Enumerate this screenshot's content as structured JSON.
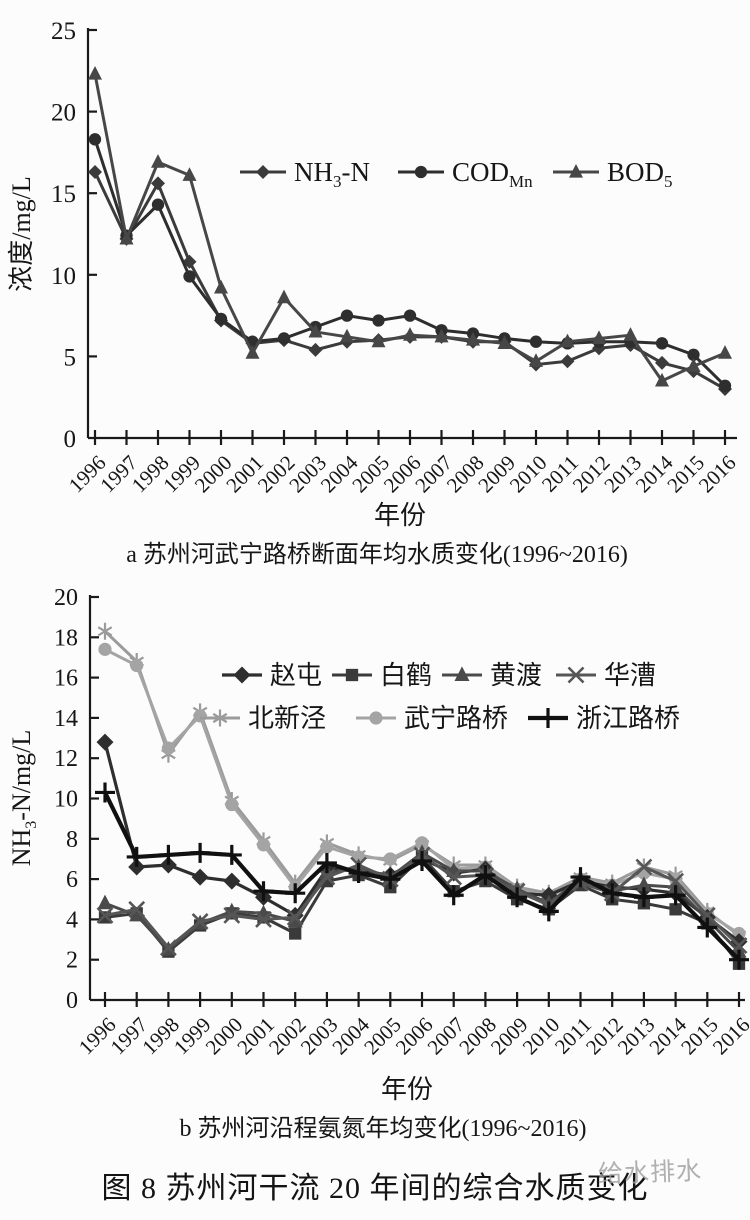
{
  "figure": {
    "title": "图 8  苏州河干流 20 年间的综合水质变化",
    "watermark": "给水排水"
  },
  "chart_data": [
    {
      "id": "a",
      "type": "line",
      "title": "a 苏州河武宁路桥断面年均水质变化(1996~2016)",
      "xlabel": "年份",
      "ylabel": "浓度/mg/L",
      "ylim": [
        0,
        25
      ],
      "ytick_step": 5,
      "grid": false,
      "legend_position": "inside-top-center",
      "categories": [
        1996,
        1997,
        1998,
        1999,
        2000,
        2001,
        2002,
        2003,
        2004,
        2005,
        2006,
        2007,
        2008,
        2009,
        2010,
        2011,
        2012,
        2013,
        2014,
        2015,
        2016
      ],
      "series": [
        {
          "name": "NH3-N",
          "legend": {
            "text": "NH",
            "sub": "3",
            "tail": "-N"
          },
          "marker": "diamond",
          "color": "#3b3b3b",
          "values": [
            16.3,
            12.2,
            15.6,
            10.8,
            7.2,
            5.8,
            6.0,
            5.4,
            5.9,
            6.0,
            6.2,
            6.2,
            5.9,
            5.9,
            4.5,
            4.7,
            5.5,
            5.7,
            4.6,
            4.1,
            3.0
          ]
        },
        {
          "name": "CODMn",
          "legend": {
            "text": "COD",
            "sub": "Mn",
            "tail": ""
          },
          "marker": "circle",
          "color": "#2e2e2e",
          "values": [
            18.3,
            12.4,
            14.3,
            9.9,
            7.3,
            5.9,
            6.1,
            6.8,
            7.5,
            7.2,
            7.5,
            6.6,
            6.4,
            6.1,
            5.9,
            5.8,
            5.9,
            5.9,
            5.8,
            5.1,
            3.2
          ]
        },
        {
          "name": "BOD5",
          "legend": {
            "text": "BOD",
            "sub": "5",
            "tail": ""
          },
          "marker": "triangle",
          "color": "#474747",
          "values": [
            22.3,
            12.2,
            16.9,
            16.1,
            9.2,
            5.2,
            8.6,
            6.5,
            6.2,
            5.9,
            6.3,
            6.2,
            6.0,
            5.8,
            4.7,
            5.9,
            6.1,
            6.3,
            3.5,
            4.4,
            5.2
          ]
        }
      ]
    },
    {
      "id": "b",
      "type": "line",
      "title": "b 苏州河沿程氨氮年均变化(1996~2016)",
      "xlabel": "年份",
      "ylabel": {
        "text": "NH",
        "sub": "3",
        "tail": "-N/mg/L"
      },
      "ylim": [
        0,
        20
      ],
      "ytick_step": 2,
      "grid": false,
      "legend_position": "inside-top-center-two-rows",
      "categories": [
        1996,
        1997,
        1998,
        1999,
        2000,
        2001,
        2002,
        2003,
        2004,
        2005,
        2006,
        2007,
        2008,
        2009,
        2010,
        2011,
        2012,
        2013,
        2014,
        2015,
        2016
      ],
      "series": [
        {
          "name": "赵屯",
          "legend": {
            "text": "赵屯",
            "sub": "",
            "tail": ""
          },
          "marker": "diamond",
          "color": "#2e2e2e",
          "values": [
            12.8,
            6.6,
            6.7,
            6.1,
            5.9,
            5.1,
            4.2,
            6.5,
            6.4,
            6.2,
            7.0,
            6.3,
            6.5,
            5.3,
            5.2,
            5.9,
            5.6,
            5.5,
            5.3,
            4.1,
            2.9
          ]
        },
        {
          "name": "白鹤",
          "legend": {
            "text": "白鹤",
            "sub": "",
            "tail": ""
          },
          "marker": "square",
          "color": "#3a3a3a",
          "values": [
            4.1,
            4.3,
            2.4,
            3.7,
            4.3,
            4.1,
            3.3,
            5.9,
            6.2,
            5.6,
            7.1,
            5.4,
            5.9,
            5.0,
            4.5,
            5.7,
            5.0,
            4.8,
            4.5,
            3.8,
            1.8
          ]
        },
        {
          "name": "黄渡",
          "legend": {
            "text": "黄渡",
            "sub": "",
            "tail": ""
          },
          "marker": "triangle",
          "color": "#4a4a4a",
          "values": [
            4.8,
            4.2,
            2.5,
            3.8,
            4.4,
            4.3,
            3.9,
            6.3,
            6.6,
            6.1,
            7.3,
            6.4,
            6.4,
            5.5,
            4.8,
            6.0,
            5.4,
            5.7,
            5.6,
            4.0,
            2.4
          ]
        },
        {
          "name": "华漕",
          "legend": {
            "text": "华漕",
            "sub": "",
            "tail": ""
          },
          "marker": "x",
          "color": "#565656",
          "values": [
            4.2,
            4.5,
            2.6,
            3.9,
            4.2,
            4.0,
            4.1,
            6.1,
            6.7,
            6.0,
            7.2,
            6.1,
            6.2,
            5.4,
            4.7,
            5.8,
            5.3,
            6.6,
            5.9,
            4.2,
            2.7
          ]
        },
        {
          "name": "北新泾",
          "legend": {
            "text": "北新泾",
            "sub": "",
            "tail": ""
          },
          "marker": "asterisk",
          "color": "#9b9b9b",
          "values": [
            18.3,
            16.8,
            12.2,
            14.3,
            9.9,
            7.9,
            5.8,
            7.8,
            7.2,
            6.9,
            7.7,
            6.7,
            6.7,
            5.6,
            5.3,
            6.1,
            5.8,
            6.6,
            6.2,
            4.4,
            3.2
          ]
        },
        {
          "name": "武宁路桥",
          "legend": {
            "text": "武宁路桥",
            "sub": "",
            "tail": ""
          },
          "marker": "circle",
          "color": "#a4a4a4",
          "values": [
            17.4,
            16.6,
            12.5,
            14.1,
            9.7,
            7.7,
            5.6,
            7.6,
            7.1,
            7.0,
            7.8,
            6.5,
            6.6,
            5.5,
            5.1,
            6.0,
            5.7,
            6.3,
            6.0,
            4.3,
            3.3
          ]
        },
        {
          "name": "浙江路桥",
          "legend": {
            "text": "浙江路桥",
            "sub": "",
            "tail": ""
          },
          "marker": "plus",
          "color": "#101010",
          "values": [
            10.3,
            7.1,
            7.2,
            7.3,
            7.2,
            5.4,
            5.3,
            6.8,
            6.3,
            6.0,
            6.9,
            5.2,
            6.2,
            5.1,
            4.4,
            6.1,
            5.3,
            5.1,
            5.2,
            3.6,
            2.0
          ]
        }
      ]
    }
  ]
}
